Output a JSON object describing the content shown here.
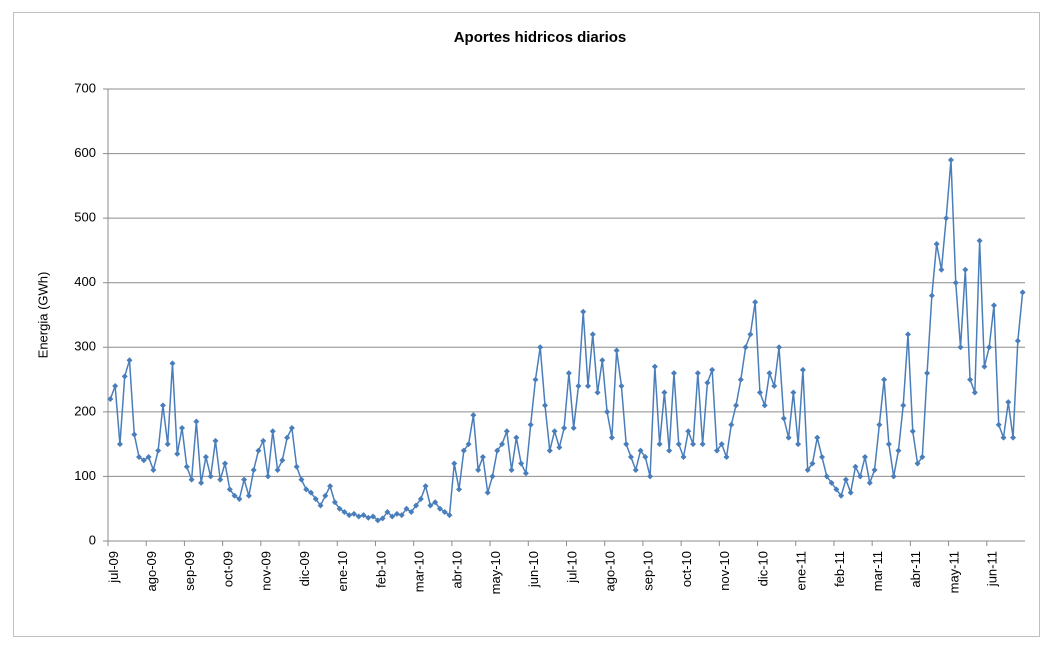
{
  "chart_data": {
    "type": "line",
    "title": "Aportes hidricos diarios",
    "y_label": "Energia (GWh)",
    "categories": [
      "jul-09",
      null,
      null,
      null,
      null,
      null,
      null,
      null,
      "ago-09",
      null,
      null,
      null,
      null,
      null,
      null,
      null,
      "sep-09",
      null,
      null,
      null,
      null,
      null,
      null,
      null,
      "oct-09",
      null,
      null,
      null,
      null,
      null,
      null,
      null,
      "nov-09",
      null,
      null,
      null,
      null,
      null,
      null,
      null,
      "dic-09",
      null,
      null,
      null,
      null,
      null,
      null,
      null,
      "ene-10",
      null,
      null,
      null,
      null,
      null,
      null,
      null,
      "feb-10",
      null,
      null,
      null,
      null,
      null,
      null,
      null,
      "mar-10",
      null,
      null,
      null,
      null,
      null,
      null,
      null,
      "abr-10",
      null,
      null,
      null,
      null,
      null,
      null,
      null,
      "may-10",
      null,
      null,
      null,
      null,
      null,
      null,
      null,
      "jun-10",
      null,
      null,
      null,
      null,
      null,
      null,
      null,
      "jul-10",
      null,
      null,
      null,
      null,
      null,
      null,
      null,
      "ago-10",
      null,
      null,
      null,
      null,
      null,
      null,
      null,
      "sep-10",
      null,
      null,
      null,
      null,
      null,
      null,
      null,
      "oct-10",
      null,
      null,
      null,
      null,
      null,
      null,
      null,
      "nov-10",
      null,
      null,
      null,
      null,
      null,
      null,
      null,
      "dic-10",
      null,
      null,
      null,
      null,
      null,
      null,
      null,
      "ene-11",
      null,
      null,
      null,
      null,
      null,
      null,
      null,
      "feb-11",
      null,
      null,
      null,
      null,
      null,
      null,
      null,
      "mar-11",
      null,
      null,
      null,
      null,
      null,
      null,
      null,
      "abr-11",
      null,
      null,
      null,
      null,
      null,
      null,
      null,
      "may-11",
      null,
      null,
      null,
      null,
      null,
      null,
      null,
      "jun-11",
      null,
      null,
      null,
      null,
      null,
      null,
      null
    ],
    "series": [
      {
        "name": "Energia",
        "color": "#4a7ebb",
        "values": [
          220,
          240,
          150,
          255,
          280,
          165,
          130,
          125,
          130,
          110,
          140,
          210,
          150,
          275,
          135,
          175,
          115,
          95,
          185,
          90,
          130,
          100,
          155,
          95,
          120,
          80,
          70,
          65,
          95,
          70,
          110,
          140,
          155,
          100,
          170,
          110,
          125,
          160,
          175,
          115,
          95,
          80,
          75,
          65,
          55,
          70,
          85,
          60,
          50,
          45,
          40,
          42,
          38,
          40,
          36,
          38,
          32,
          35,
          45,
          38,
          42,
          40,
          50,
          45,
          55,
          65,
          85,
          55,
          60,
          50,
          45,
          40,
          120,
          80,
          140,
          150,
          195,
          110,
          130,
          75,
          100,
          140,
          150,
          170,
          110,
          160,
          120,
          105,
          180,
          250,
          300,
          210,
          140,
          170,
          145,
          175,
          260,
          175,
          240,
          355,
          240,
          320,
          230,
          280,
          200,
          160,
          295,
          240,
          150,
          130,
          110,
          140,
          130,
          100,
          270,
          150,
          230,
          140,
          260,
          150,
          130,
          170,
          150,
          260,
          150,
          245,
          265,
          140,
          150,
          130,
          180,
          210,
          250,
          300,
          320,
          370,
          230,
          210,
          260,
          240,
          300,
          190,
          160,
          230,
          150,
          265,
          110,
          120,
          160,
          130,
          100,
          90,
          80,
          70,
          95,
          75,
          115,
          100,
          130,
          90,
          110,
          180,
          250,
          150,
          100,
          140,
          210,
          320,
          170,
          120,
          130,
          260,
          380,
          460,
          420,
          500,
          590,
          400,
          300,
          420,
          250,
          230,
          465,
          270,
          300,
          365,
          180,
          160,
          215,
          160,
          310,
          385
        ]
      }
    ],
    "ylim": [
      0,
      700
    ],
    "yticks": [
      0,
      100,
      200,
      300,
      400,
      500,
      600,
      700
    ],
    "grid": true
  }
}
